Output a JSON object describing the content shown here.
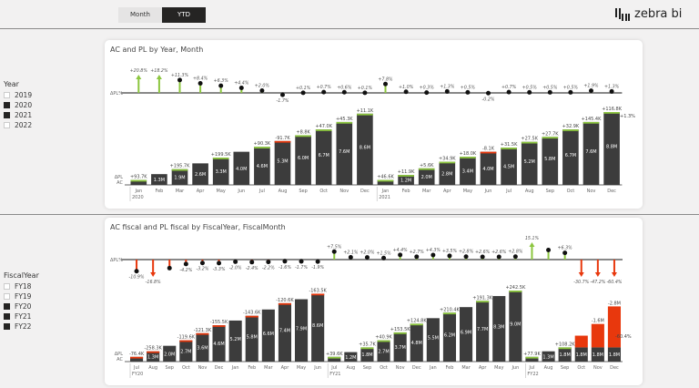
{
  "toggle": {
    "month_label": "Month",
    "ytd_label": "YTD",
    "selected": "YTD"
  },
  "logo": {
    "text": "zebra bi"
  },
  "colors": {
    "bar": "#3c3c3c",
    "positive": "#8cc63f",
    "negative": "#e8380d",
    "axis": "#888888",
    "card": "#ffffff",
    "bg": "#f2f1f1"
  },
  "slicer_year": {
    "header": "Year",
    "items": [
      {
        "label": "2019",
        "checked": false
      },
      {
        "label": "2020",
        "checked": true
      },
      {
        "label": "2021",
        "checked": true
      },
      {
        "label": "2022",
        "checked": false
      }
    ]
  },
  "slicer_fiscal": {
    "header": "FiscalYear",
    "items": [
      {
        "label": "FY18",
        "checked": false
      },
      {
        "label": "FY19",
        "checked": false
      },
      {
        "label": "FY20",
        "checked": true
      },
      {
        "label": "FY21",
        "checked": true
      },
      {
        "label": "FY22",
        "checked": true
      }
    ]
  },
  "chart1": {
    "title": "AC and PL by Year, Month",
    "row_label_top": "ΔPL%",
    "row_label_mid": "ΔPL",
    "row_label_bot": "AC"
  },
  "chart2": {
    "title": "AC fiscal and PL fiscal by FiscalYear, FiscalMonth",
    "row_label_top": "ΔPL%",
    "row_label_mid": "ΔPL",
    "row_label_bot": "AC"
  },
  "chart_data": [
    {
      "type": "bar",
      "title": "AC and PL by Year, Month",
      "categories": [
        "Jan",
        "Feb",
        "Mar",
        "Apr",
        "May",
        "Jun",
        "Jul",
        "Aug",
        "Sep",
        "Oct",
        "Nov",
        "Dec",
        "Jan",
        "Feb",
        "Mar",
        "Apr",
        "May",
        "Jun",
        "Jul",
        "Aug",
        "Sep",
        "Oct",
        "Nov",
        "Dec"
      ],
      "groups": [
        {
          "label": "2020",
          "start": 0
        },
        {
          "label": "2021",
          "start": 12
        }
      ],
      "series": [
        {
          "name": "AC (M)",
          "values": [
            0.6,
            1.3,
            1.9,
            2.6,
            3.3,
            4.0,
            4.6,
            5.3,
            6.0,
            6.7,
            7.6,
            8.6,
            0.6,
            1.2,
            2.0,
            2.8,
            3.4,
            4.0,
            4.5,
            5.2,
            5.8,
            6.7,
            7.6,
            8.8
          ],
          "labels": [
            "",
            "1.3M",
            "1.9M",
            "2.6M",
            "3.3M",
            "4.0M",
            "4.6M",
            "5.3M",
            "6.0M",
            "6.7M",
            "7.6M",
            "8.6M",
            "",
            "1.2M",
            "2.0M",
            "2.8M",
            "3.4M",
            "4.0M",
            "4.5M",
            "5.2M",
            "5.8M",
            "6.7M",
            "7.6M",
            "8.8M"
          ]
        },
        {
          "name": "ΔPL",
          "labels": [
            "+93.7K",
            "",
            "+195.7K",
            "",
            "+199.5K",
            "",
            "+90.3K",
            "-91.7K",
            "+8.8K",
            "+47.0K",
            "+45.3K",
            "+11.1K",
            "+46.6K",
            "+11.9K",
            "+5.6K",
            "+34.9K",
            "+18.0K",
            "-8.1K",
            "+31.5K",
            "+27.5K",
            "+27.7K",
            "+32.9K",
            "+145.4K",
            "+116.8K"
          ],
          "values": [
            93.7,
            0,
            195.7,
            0,
            199.5,
            0,
            90.3,
            -91.7,
            8.8,
            47.0,
            45.3,
            11.1,
            46.6,
            11.9,
            5.6,
            34.9,
            18.0,
            -8.1,
            31.5,
            27.5,
            27.7,
            32.9,
            145.4,
            116.8
          ]
        },
        {
          "name": "ΔPL%",
          "values": [
            20.8,
            18.2,
            11.3,
            8.4,
            6.3,
            4.4,
            2.0,
            -1.7,
            0.1,
            0.7,
            0.6,
            0.1,
            7.8,
            1.0,
            0.3,
            1.3,
            0.5,
            -0.2,
            0.7,
            0.5,
            0.5,
            0.5,
            1.9,
            1.3
          ],
          "labels": [
            "+20.8%",
            "+18.2%",
            "+11.3%",
            "+8.4%",
            "+6.3%",
            "+4.4%",
            "+2.0%",
            "-1.7%",
            "+0.1%",
            "+0.7%",
            "+0.6%",
            "+0.1%",
            "+7.8%",
            "+1.0%",
            "+0.3%",
            "+1.3%",
            "+0.5%",
            "-0.2%",
            "+0.7%",
            "+0.5%",
            "+0.5%",
            "+0.5%",
            "+1.9%",
            "+1.3%"
          ],
          "clipped": [
            0,
            1
          ]
        }
      ],
      "total_variance_label": "+1.3%"
    },
    {
      "type": "bar",
      "title": "AC fiscal and PL fiscal by FiscalYear, FiscalMonth",
      "categories": [
        "Jul",
        "Aug",
        "Sep",
        "Oct",
        "Nov",
        "Dec",
        "Jan",
        "Feb",
        "Mar",
        "Apr",
        "May",
        "Jun",
        "Jul",
        "Aug",
        "Sep",
        "Oct",
        "Nov",
        "Dec",
        "Jan",
        "Feb",
        "Mar",
        "Apr",
        "May",
        "Jun",
        "Jul",
        "Aug",
        "Sep",
        "Oct",
        "Nov",
        "Dec"
      ],
      "groups": [
        {
          "label": "FY20",
          "start": 0
        },
        {
          "label": "FY21",
          "start": 12
        },
        {
          "label": "FY22",
          "start": 24
        }
      ],
      "series": [
        {
          "name": "AC (M)",
          "values": [
            0.6,
            1.3,
            2.0,
            2.7,
            3.6,
            4.6,
            5.2,
            5.8,
            6.6,
            7.4,
            7.9,
            8.6,
            0.6,
            1.2,
            1.8,
            2.7,
            3.7,
            4.8,
            5.5,
            6.2,
            6.9,
            7.7,
            8.3,
            9.0,
            0.6,
            1.3,
            1.8,
            1.8,
            1.8,
            1.8
          ],
          "labels": [
            "",
            "1.3M",
            "2.0M",
            "2.7M",
            "3.6M",
            "4.6M",
            "5.2M",
            "5.8M",
            "6.6M",
            "7.4M",
            "7.9M",
            "8.6M",
            "",
            "1.2M",
            "1.8M",
            "2.7M",
            "3.7M",
            "4.8M",
            "5.5M",
            "6.2M",
            "6.9M",
            "7.7M",
            "8.3M",
            "9.0M",
            "",
            "1.3M",
            "1.8M",
            "1.8M",
            "1.8M",
            "1.8M"
          ]
        },
        {
          "name": "ΔPL",
          "labels": [
            "-76.4K",
            "-258.3K",
            "",
            "-119.6K",
            "-121.3K",
            "-155.5K",
            "",
            "-143.6K",
            "",
            "-120.6K",
            "",
            "-163.5K",
            "+39.6K",
            "",
            "+35.7K",
            "+40.9K",
            "+153.5K",
            "+124.8K",
            "",
            "+210.4K",
            "",
            "+191.3K",
            "",
            "+242.5K",
            "+77.9K",
            "",
            "+108.2K",
            "",
            "-1.6M",
            "-2.8M"
          ],
          "values": [
            -76.4,
            -258.3,
            0,
            -119.6,
            -121.3,
            -155.5,
            0,
            -143.6,
            0,
            -120.6,
            0,
            -163.5,
            39.6,
            0,
            35.7,
            40.9,
            153.5,
            124.8,
            0,
            210.4,
            0,
            191.3,
            0,
            242.5,
            77.9,
            0,
            108.2,
            -800,
            -1600,
            -2800
          ]
        },
        {
          "name": "ΔPL%",
          "values": [
            -10.9,
            -16.8,
            -8,
            -4.2,
            -3.2,
            -3.3,
            -2.0,
            -2.4,
            -2.2,
            -1.6,
            -1.7,
            -1.9,
            7.5,
            2.1,
            2.0,
            1.5,
            4.4,
            2.7,
            4.3,
            3.5,
            2.8,
            2.6,
            2.6,
            2.8,
            15.1,
            9,
            6.3,
            -30.7,
            -47.2,
            -60.4
          ],
          "labels": [
            "-10.9%",
            "-16.8%",
            "",
            "-4.2%",
            "-3.2%",
            "-3.3%",
            "-2.0%",
            "-2.4%",
            "-2.2%",
            "-1.6%",
            "-1.7%",
            "-1.9%",
            "+7.5%",
            "+2.1%",
            "+2.0%",
            "+1.5%",
            "+4.4%",
            "+2.7%",
            "+4.3%",
            "+3.5%",
            "+2.8%",
            "+2.6%",
            "+2.6%",
            "+2.8%",
            "15.1%",
            "",
            "+6.3%",
            "-30.7%",
            "-47.2%",
            "-60.4%"
          ]
        }
      ],
      "total_variance_label": "-60.4%"
    }
  ]
}
